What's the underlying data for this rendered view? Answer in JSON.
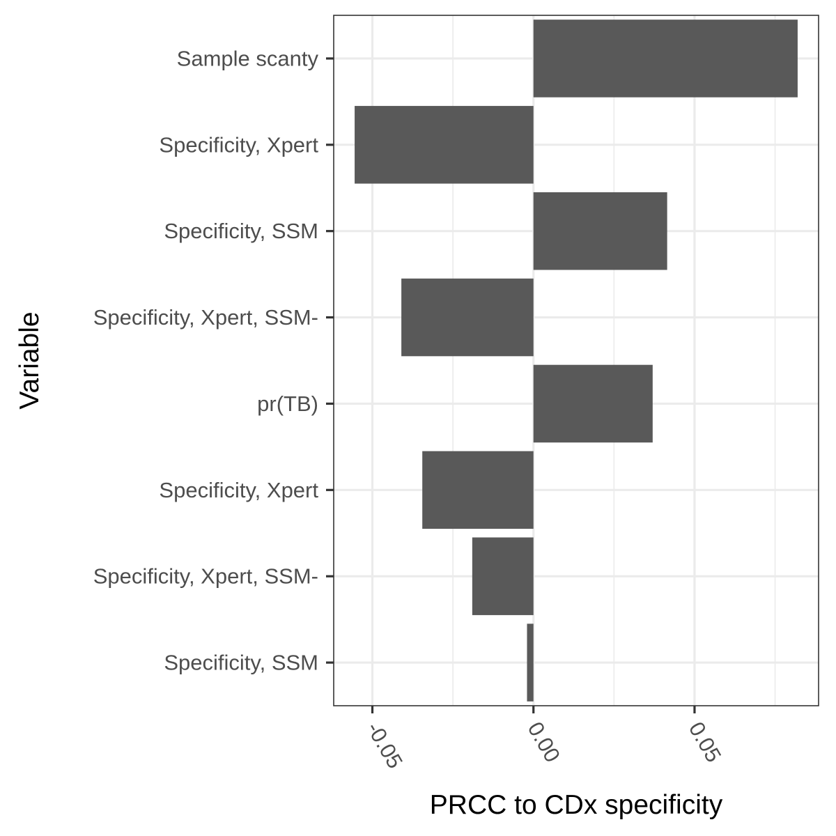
{
  "chart_data": {
    "type": "bar",
    "orientation": "horizontal",
    "categories": [
      "Sample scanty",
      "Specificity, Xpert",
      "Specificity, SSM",
      "Specificity, Xpert, SSM-",
      "pr(TB)",
      "Specificity, Xpert",
      "Specificity, Xpert, SSM-",
      "Specificity, SSM"
    ],
    "values": [
      0.082,
      -0.0555,
      0.0415,
      -0.041,
      0.037,
      -0.0345,
      -0.019,
      -0.002
    ],
    "xlabel": "PRCC to CDx specificity",
    "ylabel": "Variable",
    "xlim": [
      -0.062,
      0.0885
    ],
    "x_ticks": [
      -0.05,
      0.0,
      0.05
    ],
    "x_tick_labels": [
      "-0.05",
      "0.00",
      "0.05"
    ],
    "grid": true,
    "theme": "bw",
    "bar_color": "#595959"
  }
}
